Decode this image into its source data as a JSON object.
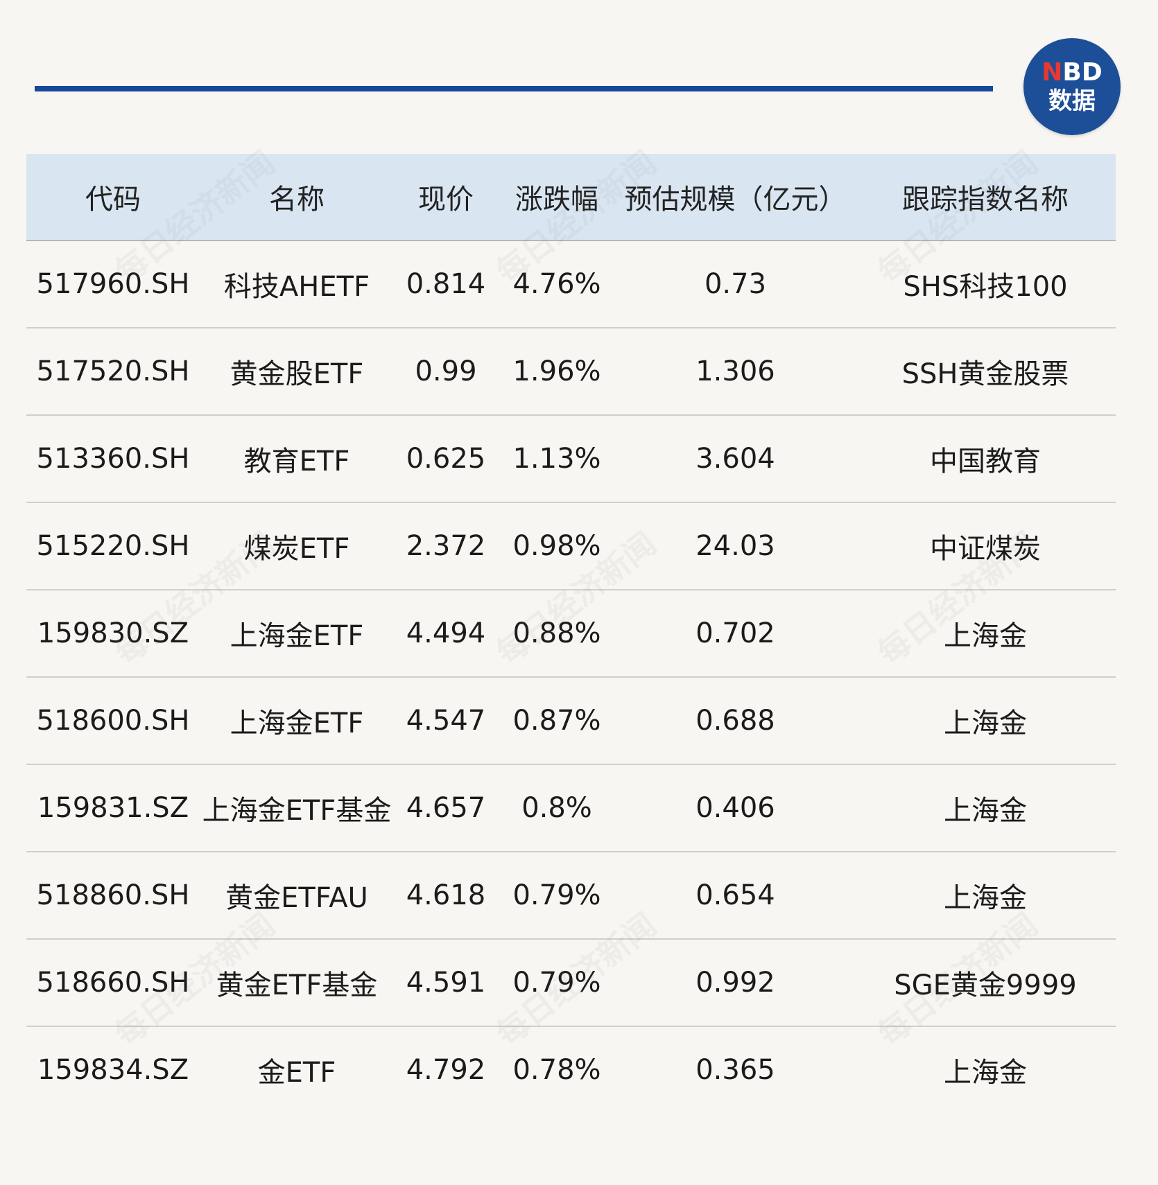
{
  "logo": {
    "brand_n": "N",
    "brand_rest": "BD",
    "sub": "数据"
  },
  "watermark_text": "每日经济新闻",
  "chart_data": {
    "type": "table",
    "columns": [
      "代码",
      "名称",
      "现价",
      "涨跌幅",
      "预估规模（亿元）",
      "跟踪指数名称"
    ],
    "rows": [
      [
        "517960.SH",
        "科技AHETF",
        "0.814",
        "4.76%",
        "0.73",
        "SHS科技100"
      ],
      [
        "517520.SH",
        "黄金股ETF",
        "0.99",
        "1.96%",
        "1.306",
        "SSH黄金股票"
      ],
      [
        "513360.SH",
        "教育ETF",
        "0.625",
        "1.13%",
        "3.604",
        "中国教育"
      ],
      [
        "515220.SH",
        "煤炭ETF",
        "2.372",
        "0.98%",
        "24.03",
        "中证煤炭"
      ],
      [
        "159830.SZ",
        "上海金ETF",
        "4.494",
        "0.88%",
        "0.702",
        "上海金"
      ],
      [
        "518600.SH",
        "上海金ETF",
        "4.547",
        "0.87%",
        "0.688",
        "上海金"
      ],
      [
        "159831.SZ",
        "上海金ETF基金",
        "4.657",
        "0.8%",
        "0.406",
        "上海金"
      ],
      [
        "518860.SH",
        "黄金ETFAU",
        "4.618",
        "0.79%",
        "0.654",
        "上海金"
      ],
      [
        "518660.SH",
        "黄金ETF基金",
        "4.591",
        "0.79%",
        "0.992",
        "SGE黄金9999"
      ],
      [
        "159834.SZ",
        "金ETF",
        "4.792",
        "0.78%",
        "0.365",
        "上海金"
      ]
    ]
  }
}
